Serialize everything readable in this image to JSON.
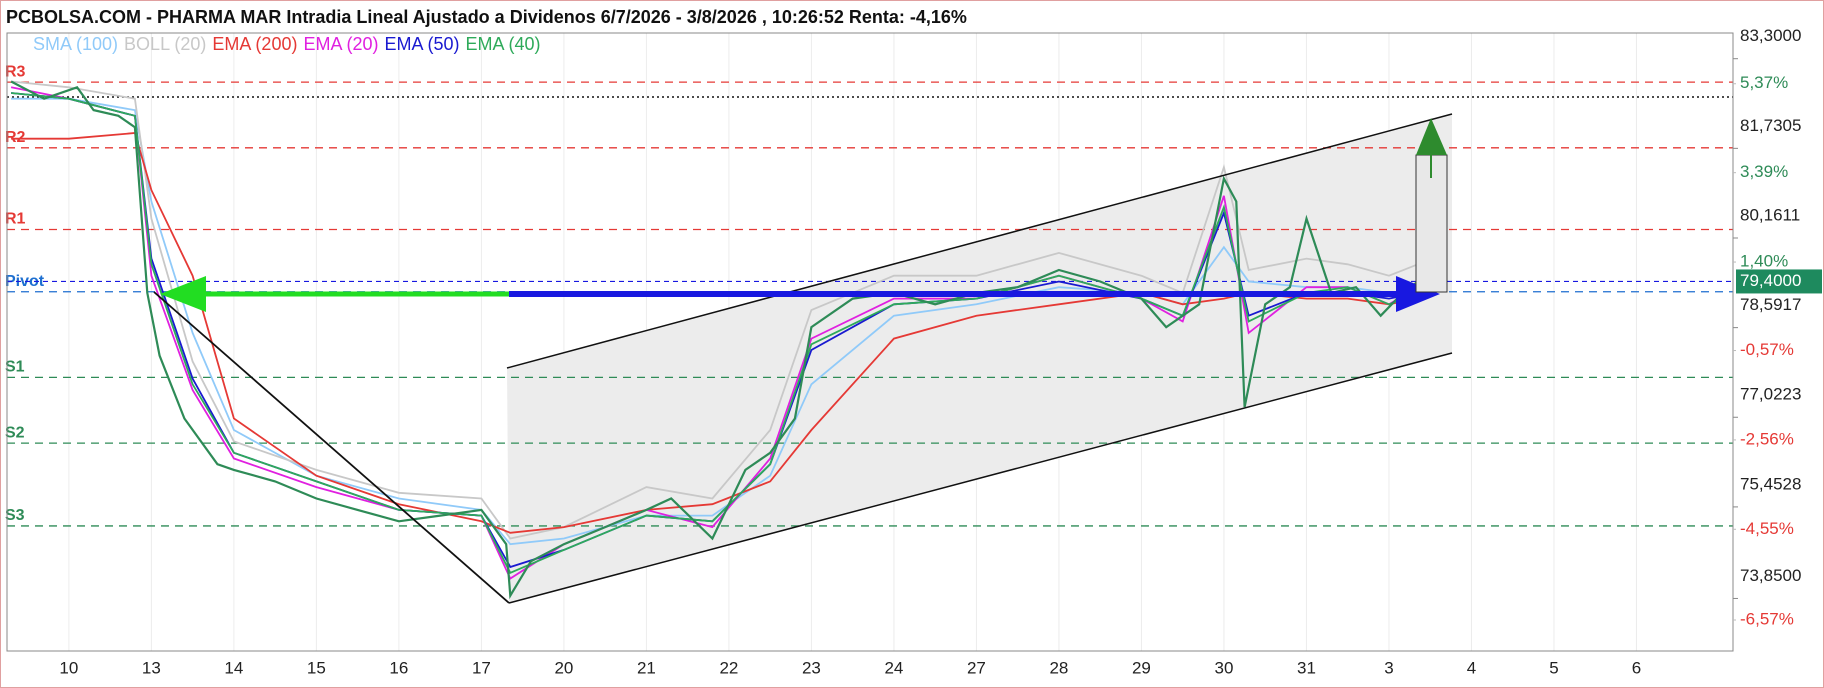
{
  "chart_data": {
    "type": "line",
    "title": "PCBOLSA.COM - PHARMA MAR Intradia Lineal Ajustado a Dividenos 6/7/2026 - 3/8/2026 , 10:26:52 Renta: -4,16%",
    "xlim": [
      -0.75,
      20.17
    ],
    "xticks": [
      {
        "value": 0,
        "label": "10"
      },
      {
        "value": 1,
        "label": "13"
      },
      {
        "value": 2,
        "label": "14"
      },
      {
        "value": 3,
        "label": "15"
      },
      {
        "value": 4,
        "label": "16"
      },
      {
        "value": 5,
        "label": "17"
      },
      {
        "value": 6,
        "label": "20"
      },
      {
        "value": 7,
        "label": "21"
      },
      {
        "value": 8,
        "label": "22"
      },
      {
        "value": 9,
        "label": "23"
      },
      {
        "value": 10,
        "label": "24"
      },
      {
        "value": 11,
        "label": "27"
      },
      {
        "value": 12,
        "label": "28"
      },
      {
        "value": 13,
        "label": "29"
      },
      {
        "value": 14,
        "label": "30"
      },
      {
        "value": 15,
        "label": "31"
      },
      {
        "value": 16,
        "label": "3"
      },
      {
        "value": 17,
        "label": "4"
      },
      {
        "value": 18,
        "label": "5"
      },
      {
        "value": 19,
        "label": "6"
      }
    ],
    "ylim": [
      72.93,
      83.75
    ],
    "yticks": [
      {
        "value": 83.3,
        "label": "83,3000"
      },
      {
        "value": 81.7305,
        "label": "81,7305"
      },
      {
        "value": 80.1611,
        "label": "80,1611"
      },
      {
        "value": 78.5917,
        "label": "78,5917"
      },
      {
        "value": 77.0223,
        "label": "77,0223"
      },
      {
        "value": 75.4528,
        "label": "75,4528"
      },
      {
        "value": 73.85,
        "label": "73,8500"
      }
    ],
    "y2lim": [
      -7.26,
      6.5
    ],
    "y2ticks": [
      {
        "value": 5.37,
        "label": "5,37%"
      },
      {
        "value": 3.39,
        "label": "3,39%"
      },
      {
        "value": 1.4,
        "label": "1,40%"
      },
      {
        "value": -0.57,
        "label": "-0,57%"
      },
      {
        "value": -2.56,
        "label": "-2,56%"
      },
      {
        "value": -4.55,
        "label": "-4,55%"
      },
      {
        "value": -6.57,
        "label": "-6,57%"
      }
    ],
    "grid": true,
    "current_price": {
      "value": 79.4,
      "label": "79,4000",
      "color": "#1e8a5e"
    },
    "max_line": 82.63,
    "pivots": [
      {
        "label": "R3",
        "value": 82.89,
        "color": "#e53935"
      },
      {
        "label": "R2",
        "value": 81.74,
        "color": "#e53935"
      },
      {
        "label": "R1",
        "value": 80.31,
        "color": "#e53935"
      },
      {
        "label": "Pivot",
        "value": 79.22,
        "color": "#1e6fd0"
      },
      {
        "label": "S1",
        "value": 77.72,
        "color": "#2e8b57"
      },
      {
        "label": "S2",
        "value": 76.57,
        "color": "#2e8b57"
      },
      {
        "label": "S3",
        "value": 75.12,
        "color": "#2e8b57"
      }
    ],
    "price": {
      "color": "#2e8b57",
      "x": [
        -0.7,
        -0.3,
        0.1,
        0.3,
        0.6,
        0.8,
        0.95,
        1.1,
        1.4,
        1.8,
        2.0,
        2.5,
        3.0,
        3.5,
        4.0,
        4.5,
        5.0,
        5.3,
        5.35,
        5.6,
        6.0,
        6.5,
        7.0,
        7.3,
        7.8,
        8.2,
        8.5,
        8.8,
        9.0,
        9.5,
        10.0,
        10.5,
        11.0,
        11.5,
        12.0,
        12.5,
        13.0,
        13.3,
        13.7,
        14.0,
        14.15,
        14.25,
        14.5,
        14.8,
        15.0,
        15.3,
        15.6,
        15.9,
        16.1,
        16.35
      ],
      "values": [
        82.9,
        82.6,
        82.8,
        82.4,
        82.3,
        82.1,
        79.2,
        78.1,
        77.0,
        76.2,
        76.1,
        75.9,
        75.6,
        75.4,
        75.2,
        75.3,
        75.4,
        74.8,
        73.9,
        74.5,
        74.8,
        75.1,
        75.4,
        75.6,
        74.9,
        76.1,
        76.4,
        77.0,
        78.6,
        79.1,
        79.2,
        79.0,
        79.2,
        79.3,
        79.6,
        79.4,
        79.1,
        78.6,
        79.0,
        81.2,
        80.8,
        77.2,
        79.0,
        79.3,
        80.5,
        79.2,
        79.3,
        78.8,
        79.1,
        79.4
      ]
    },
    "series_x": [
      -0.7,
      0,
      0.8,
      1.0,
      1.5,
      2,
      3,
      4,
      5,
      5.35,
      6,
      7,
      7.8,
      8.5,
      9,
      10,
      11,
      12,
      13,
      13.5,
      14,
      14.3,
      15,
      15.5,
      16,
      16.35
    ],
    "series": [
      {
        "name": "SMA (100)",
        "color": "#90caf9",
        "values": [
          82.6,
          82.6,
          82.4,
          80.8,
          78.5,
          76.8,
          76.0,
          75.6,
          75.4,
          74.8,
          74.9,
          75.3,
          75.3,
          76.0,
          77.6,
          78.8,
          79.0,
          79.3,
          79.2,
          79.0,
          80.0,
          79.4,
          79.3,
          79.3,
          79.2,
          79.2
        ]
      },
      {
        "name": "BOLL (20)",
        "color": "#c8c8c8",
        "values": [
          82.9,
          82.8,
          82.6,
          80.5,
          78.0,
          76.6,
          76.1,
          75.7,
          75.6,
          74.9,
          75.1,
          75.8,
          75.6,
          76.8,
          78.9,
          79.5,
          79.5,
          79.9,
          79.5,
          79.2,
          81.4,
          79.6,
          79.8,
          79.7,
          79.5,
          79.7
        ]
      },
      {
        "name": "EMA (200)",
        "color": "#e53935",
        "values": [
          81.9,
          81.9,
          82.0,
          81.0,
          79.5,
          77.0,
          76.0,
          75.5,
          75.2,
          75.0,
          75.1,
          75.4,
          75.5,
          75.9,
          76.8,
          78.4,
          78.8,
          79.0,
          79.2,
          79.0,
          79.1,
          79.2,
          79.1,
          79.1,
          79.0,
          79.1
        ]
      },
      {
        "name": "EMA (20)",
        "color": "#e020e0",
        "values": [
          82.8,
          82.6,
          82.3,
          79.5,
          77.5,
          76.3,
          75.8,
          75.4,
          75.3,
          74.2,
          74.8,
          75.4,
          75.1,
          76.3,
          78.4,
          79.1,
          79.1,
          79.5,
          79.1,
          78.7,
          80.9,
          78.5,
          79.3,
          79.3,
          79.0,
          79.3
        ]
      },
      {
        "name": "EMA (50)",
        "color": "#1a1ad0",
        "values": [
          82.7,
          82.6,
          82.3,
          79.8,
          77.7,
          76.4,
          75.9,
          75.4,
          75.3,
          74.4,
          74.7,
          75.3,
          75.2,
          76.2,
          78.2,
          79.0,
          79.1,
          79.4,
          79.1,
          78.8,
          80.6,
          78.8,
          79.2,
          79.2,
          79.1,
          79.2
        ]
      },
      {
        "name": "EMA (40)",
        "color": "#2eaa5a",
        "values": [
          82.7,
          82.6,
          82.3,
          79.7,
          77.6,
          76.4,
          75.9,
          75.4,
          75.3,
          74.3,
          74.7,
          75.3,
          75.2,
          76.2,
          78.3,
          79.0,
          79.1,
          79.5,
          79.1,
          78.8,
          80.7,
          78.7,
          79.2,
          79.3,
          79.0,
          79.2
        ]
      }
    ]
  }
}
